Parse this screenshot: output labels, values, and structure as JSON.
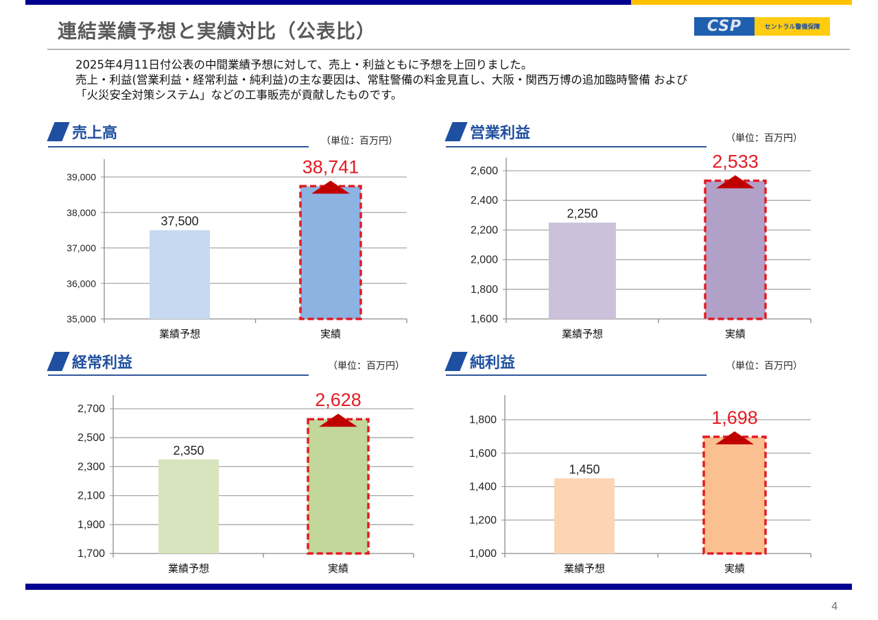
{
  "header": {
    "title": "連結業績予想と実績対比（公表比）",
    "logo": {
      "mark": "CSP",
      "company": "セントラル警備保障"
    },
    "colors": {
      "navy": "#000090",
      "gold": "#FFC000"
    }
  },
  "summary": {
    "lines": [
      "2025年4月11日付公表の中間業績予想に対して、売上・利益ともに予想を上回りました。",
      "売上・利益(営業利益・経常利益・純利益)の主な要因は、常駐警備の料金見直し、大阪・関西万博の追加臨時警備 および",
      "「火災安全対策システム」などの工事販売が貢献したものです。"
    ]
  },
  "footer": {
    "page_number": "4"
  },
  "chart_data": [
    {
      "id": "sales",
      "type": "bar",
      "title": "売上高",
      "unit_label": "（単位：百万円）",
      "categories": [
        "業績予想",
        "実績"
      ],
      "values": [
        37500,
        38741
      ],
      "value_labels": [
        "37,500",
        "38,741"
      ],
      "ylim": [
        35000,
        39000
      ],
      "yticks": [
        35000,
        36000,
        37000,
        38000,
        39000
      ],
      "ytick_labels": [
        "35,000",
        "36,000",
        "37,000",
        "38,000",
        "39,000"
      ],
      "colors": [
        "#C6D9F1",
        "#8DB3E2"
      ],
      "highlight_index": 1,
      "highlight_color": "#E31B23",
      "grid": true,
      "xlabel": "",
      "ylabel": ""
    },
    {
      "id": "operating_income",
      "type": "bar",
      "title": "営業利益",
      "unit_label": "（単位：百万円）",
      "categories": [
        "業績予想",
        "実績"
      ],
      "values": [
        2250,
        2533
      ],
      "value_labels": [
        "2,250",
        "2,533"
      ],
      "ylim": [
        1600,
        2600
      ],
      "yticks": [
        1600,
        1800,
        2000,
        2200,
        2400,
        2600
      ],
      "ytick_labels": [
        "1,600",
        "1,800",
        "2,000",
        "2,200",
        "2,400",
        "2,600"
      ],
      "colors": [
        "#CCC1DA",
        "#B1A0C7"
      ],
      "highlight_index": 1,
      "highlight_color": "#E31B23",
      "grid": true,
      "xlabel": "",
      "ylabel": ""
    },
    {
      "id": "ordinary_income",
      "type": "bar",
      "title": "経常利益",
      "unit_label": "（単位：百万円）",
      "categories": [
        "業績予想",
        "実績"
      ],
      "values": [
        2350,
        2628
      ],
      "value_labels": [
        "2,350",
        "2,628"
      ],
      "ylim": [
        1700,
        2700
      ],
      "yticks": [
        1700,
        1900,
        2100,
        2300,
        2500,
        2700
      ],
      "ytick_labels": [
        "1,700",
        "1,900",
        "2,100",
        "2,300",
        "2,500",
        "2,700"
      ],
      "colors": [
        "#D7E4BD",
        "#C3D69B"
      ],
      "highlight_index": 1,
      "highlight_color": "#E31B23",
      "grid": true,
      "xlabel": "",
      "ylabel": ""
    },
    {
      "id": "net_income",
      "type": "bar",
      "title": "純利益",
      "unit_label": "（単位：百万円）",
      "categories": [
        "業績予想",
        "実績"
      ],
      "values": [
        1450,
        1698
      ],
      "value_labels": [
        "1,450",
        "1,698"
      ],
      "ylim": [
        1000,
        1800
      ],
      "yticks": [
        1000,
        1200,
        1400,
        1600,
        1800
      ],
      "ytick_labels": [
        "1,000",
        "1,200",
        "1,400",
        "1,600",
        "1,800"
      ],
      "colors": [
        "#FCD5B5",
        "#FAC090"
      ],
      "highlight_index": 1,
      "highlight_color": "#E31B23",
      "grid": true,
      "xlabel": "",
      "ylabel": ""
    }
  ]
}
